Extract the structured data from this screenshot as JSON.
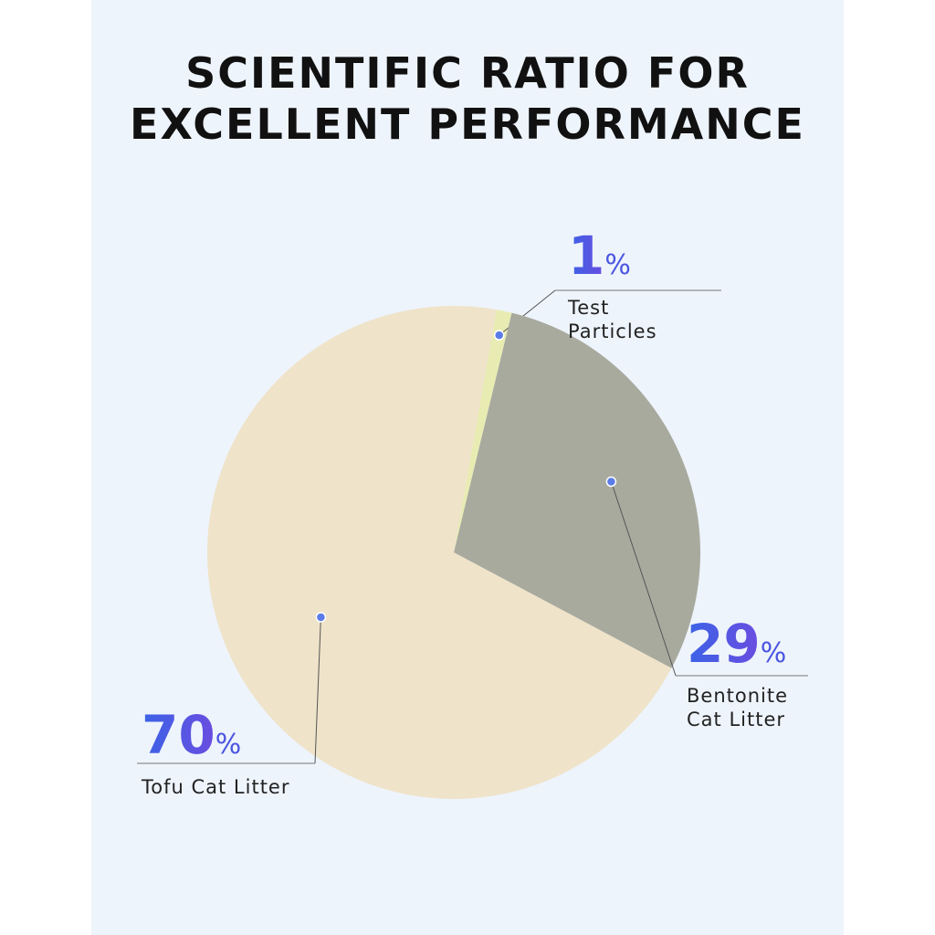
{
  "chart_data": {
    "type": "pie",
    "title": "SCIENTIFIC RATIO FOR EXCELLENT PERFORMANCE",
    "categories": [
      "Test Particles",
      "Bentonite Cat Litter",
      "Tofu Cat Litter"
    ],
    "values": [
      1,
      29,
      70
    ],
    "unit": "%",
    "colors": [
      "#e8ecb2",
      "#a8aa9e",
      "#efe3c9"
    ]
  }
}
